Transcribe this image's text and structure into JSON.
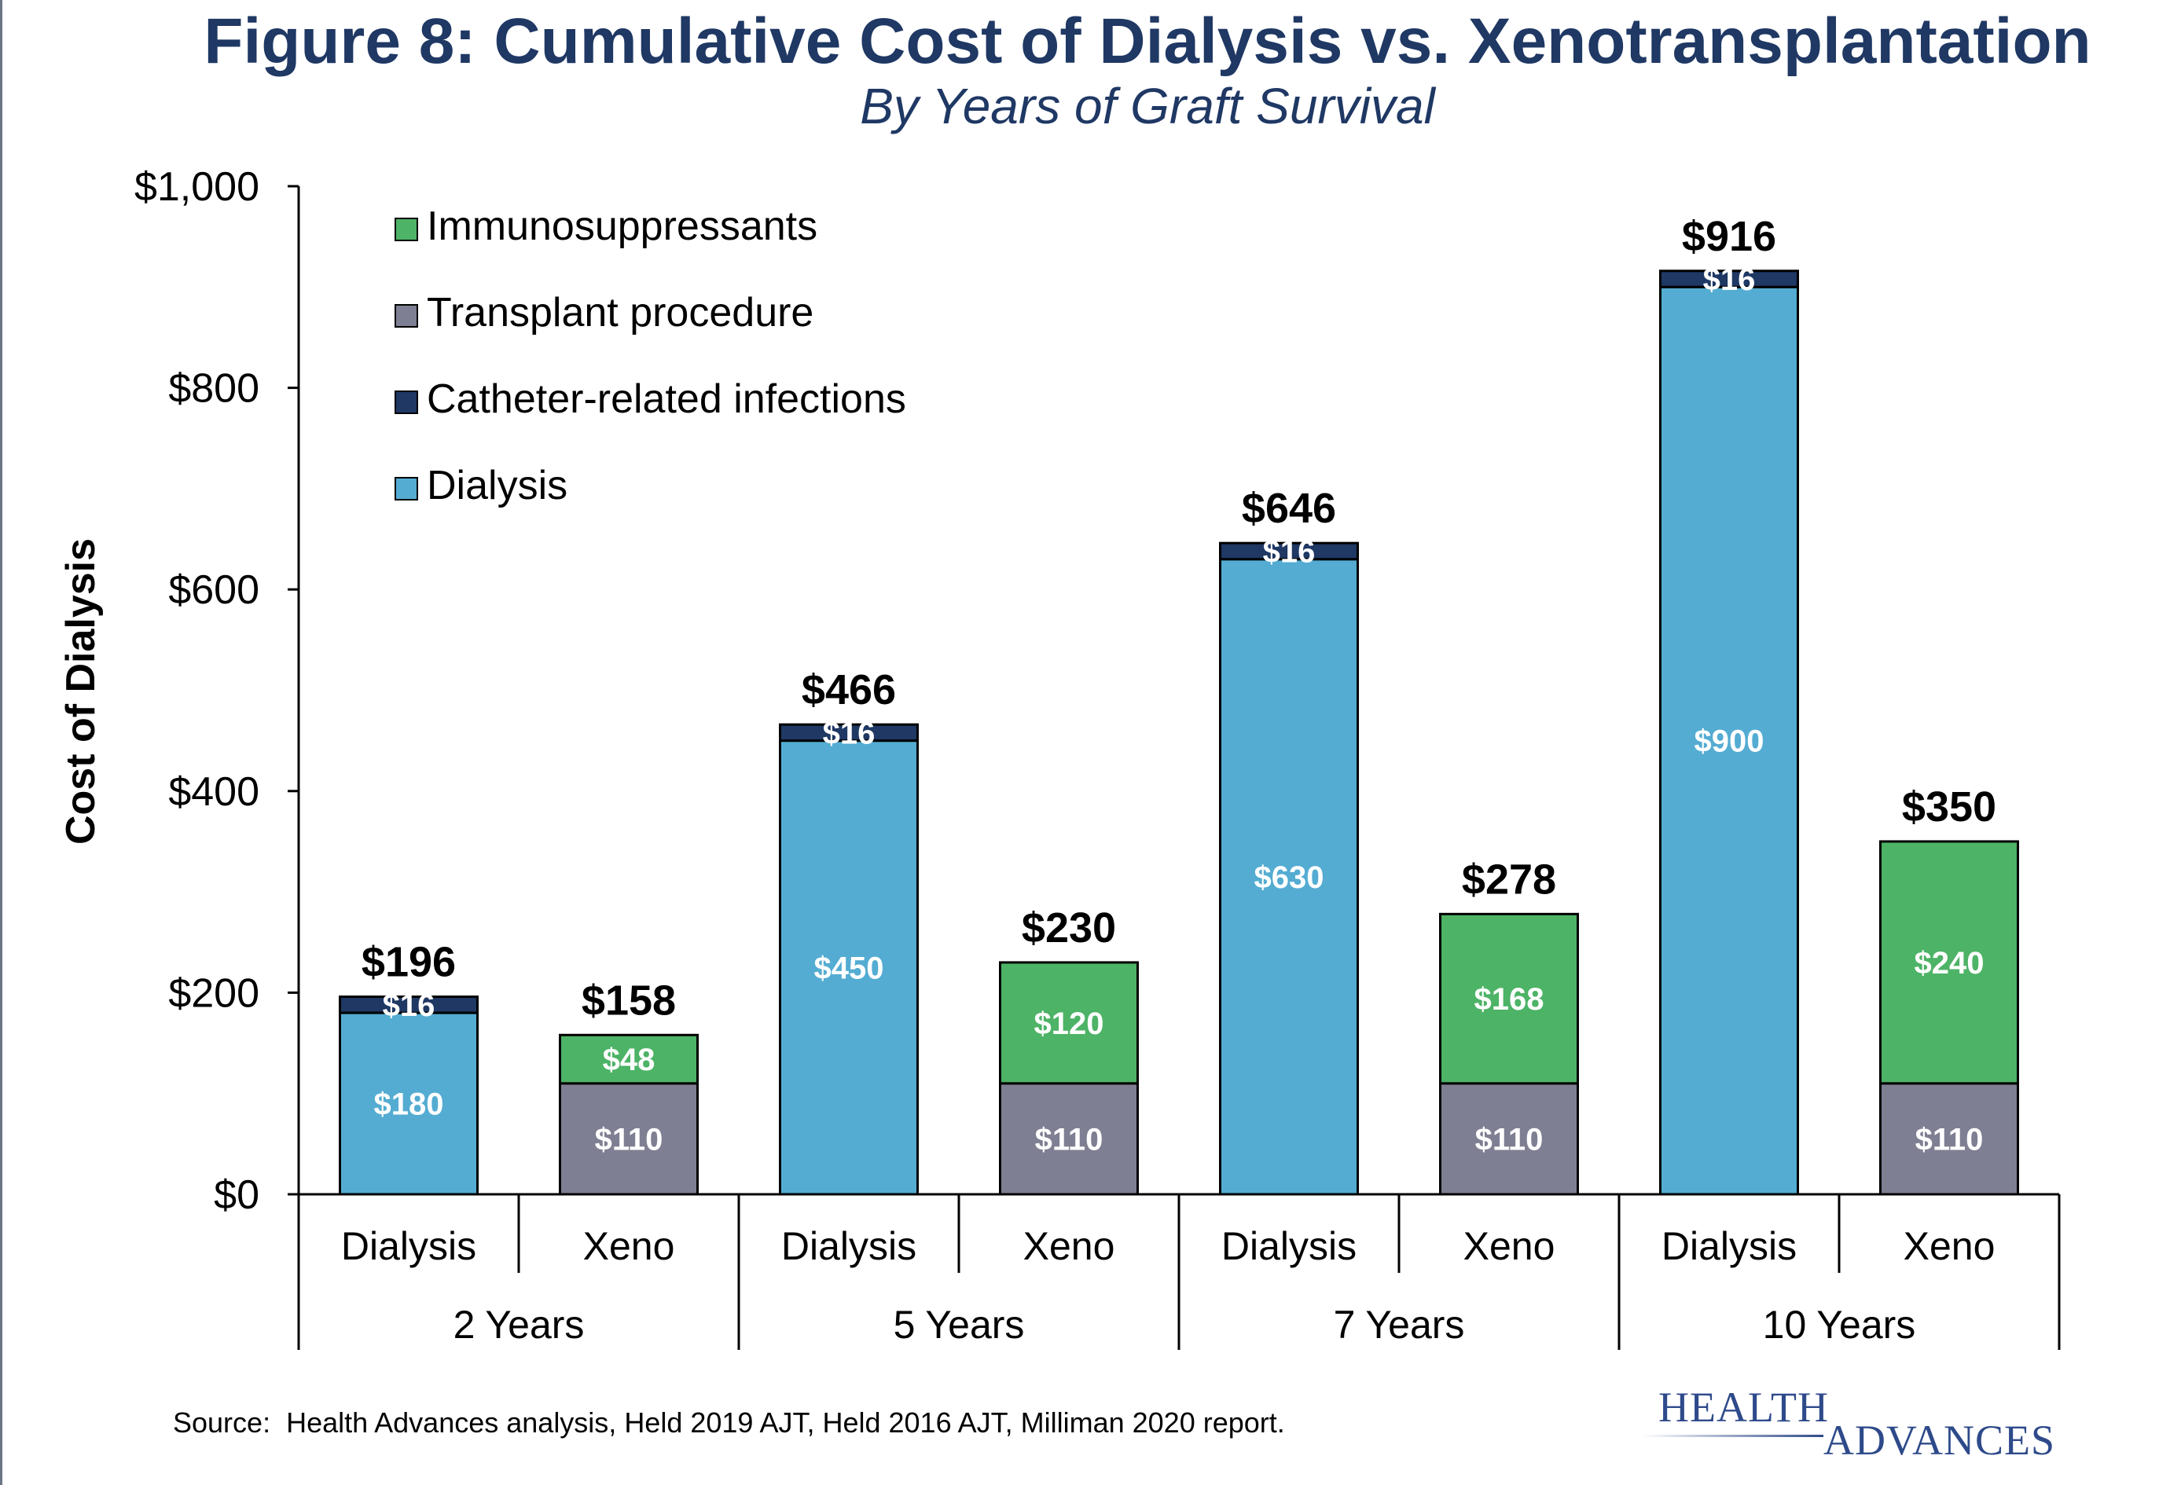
{
  "header": {
    "title": "Figure 8: Cumulative Cost of Dialysis vs. Xenotransplantation",
    "subtitle": "By Years of Graft Survival"
  },
  "footer": {
    "source": "Source:  Health Advances analysis, Held 2019 AJT, Held 2016 AJT, Milliman 2020 report.",
    "logo_line1": "HEALTH",
    "logo_line2": "ADVANCES"
  },
  "colors": {
    "dialysis": "#54acd2",
    "catheter": "#1f3864",
    "transplant": "#7f7f93",
    "immuno": "#4db366",
    "title": "#1f3864"
  },
  "chart_data": {
    "type": "bar",
    "stacked": true,
    "title": "Figure 8: Cumulative Cost of Dialysis vs. Xenotransplantation",
    "subtitle": "By Years of Graft Survival",
    "xlabel": "",
    "ylabel": "Cost of Dialysis",
    "ylim": [
      0,
      1000
    ],
    "yticks": [
      0,
      200,
      400,
      600,
      800,
      1000
    ],
    "ytick_labels": [
      "$0",
      "$200",
      "$400",
      "$600",
      "$800",
      "$1,000"
    ],
    "legend": [
      "Immunosuppressants",
      "Transplant procedure",
      "Catheter-related infections",
      "Dialysis"
    ],
    "legend_position": "top-left",
    "groups": [
      "2 Years",
      "5 Years",
      "7 Years",
      "10 Years"
    ],
    "categories": [
      "Dialysis",
      "Xeno",
      "Dialysis",
      "Xeno",
      "Dialysis",
      "Xeno",
      "Dialysis",
      "Xeno"
    ],
    "series": [
      {
        "name": "Dialysis",
        "values": [
          180,
          0,
          450,
          0,
          630,
          0,
          900,
          0
        ],
        "labels": [
          "$180",
          "",
          "$450",
          "",
          "$630",
          "",
          "$900",
          ""
        ]
      },
      {
        "name": "Catheter-related infections",
        "values": [
          16,
          0,
          16,
          0,
          16,
          0,
          16,
          0
        ],
        "labels": [
          "$16",
          "",
          "$16",
          "",
          "$16",
          "",
          "$16",
          ""
        ]
      },
      {
        "name": "Transplant procedure",
        "values": [
          0,
          110,
          0,
          110,
          0,
          110,
          0,
          110
        ],
        "labels": [
          "",
          "$110",
          "",
          "$110",
          "",
          "$110",
          "",
          "$110"
        ]
      },
      {
        "name": "Immunosuppressants",
        "values": [
          0,
          48,
          0,
          120,
          0,
          168,
          0,
          240
        ],
        "labels": [
          "",
          "$48",
          "",
          "$120",
          "",
          "$168",
          "",
          "$240"
        ]
      }
    ],
    "totals": [
      196,
      158,
      466,
      230,
      646,
      278,
      916,
      350
    ],
    "total_labels": [
      "$196",
      "$158",
      "$466",
      "$230",
      "$646",
      "$278",
      "$916",
      "$350"
    ]
  }
}
